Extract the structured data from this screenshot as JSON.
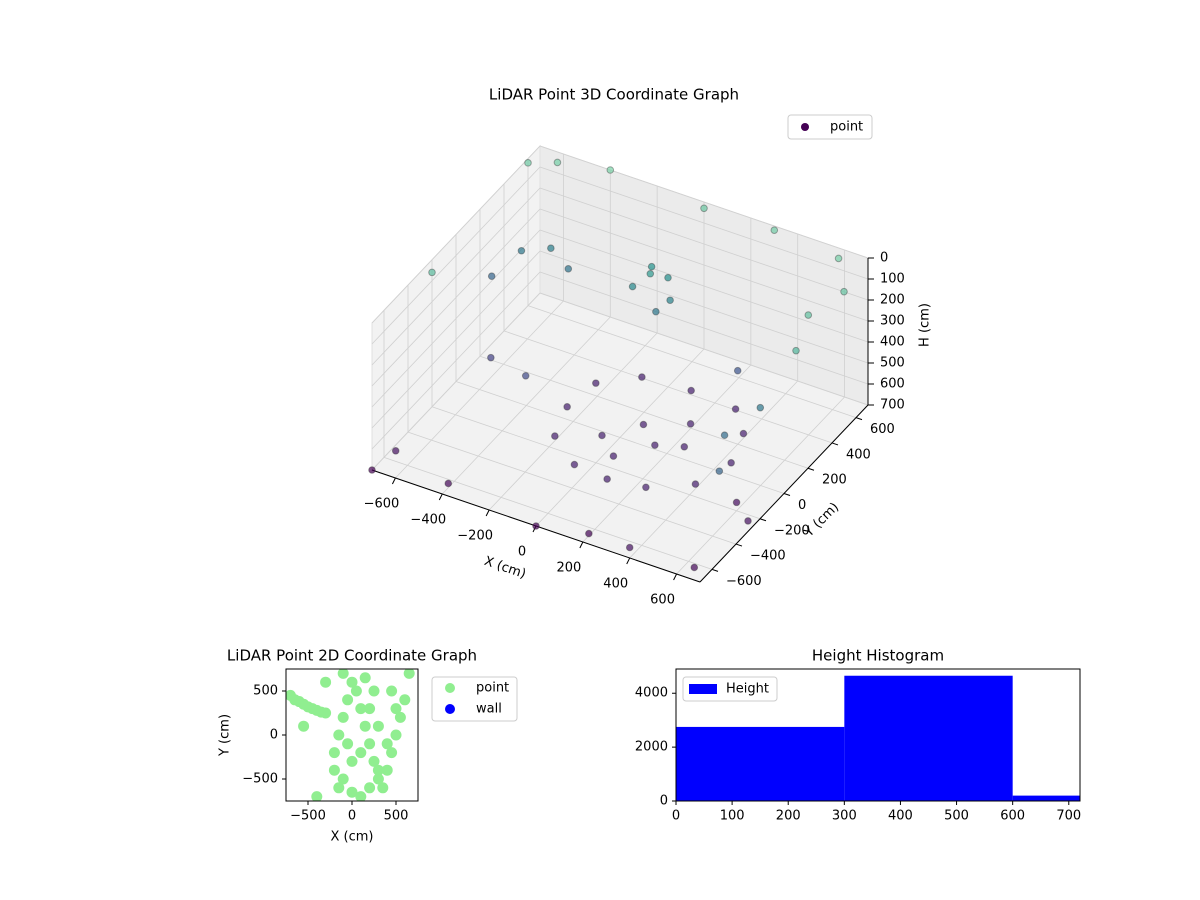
{
  "chart_data": [
    {
      "type": "scatter3d",
      "title": "LiDAR Point 3D Coordinate Graph",
      "xlabel": "X (cm)",
      "ylabel": "Y (cm)",
      "zlabel": "H (cm)",
      "xlim": [
        -700,
        700
      ],
      "ylim": [
        -700,
        700
      ],
      "zlim": [
        0,
        700
      ],
      "z_inverted": true,
      "grid": true,
      "legend": "upper right",
      "xticks": [
        {
          "value": -600,
          "label": "−600"
        },
        {
          "value": -400,
          "label": "−400"
        },
        {
          "value": -200,
          "label": "−200"
        },
        0,
        200,
        400,
        600
      ],
      "yticks": [
        {
          "value": -600,
          "label": "−600"
        },
        {
          "value": -400,
          "label": "−400"
        },
        {
          "value": -200,
          "label": "−200"
        },
        0,
        200,
        400,
        600
      ],
      "zticks": [
        0,
        100,
        200,
        300,
        400,
        500,
        600,
        700
      ],
      "series": [
        {
          "name": "point",
          "color": "#440154",
          "cmap": [
            "#7ad3a8",
            "#21918c",
            "#3b528b",
            "#46327e",
            "#440154"
          ],
          "x": [
            500,
            450,
            350,
            150,
            -50,
            -180,
            -200,
            -150,
            0,
            150,
            300,
            450,
            100,
            200,
            0,
            250,
            100,
            300,
            -50,
            0,
            -100,
            50,
            -80,
            20,
            -600,
            -500,
            -400,
            -650,
            -700,
            -600,
            -400,
            0,
            300,
            600,
            700,
            650,
            -700,
            700,
            650,
            600,
            680,
            -650,
            -400,
            0,
            400,
            650,
            700,
            -700,
            200,
            600,
            -300,
            400,
            -500
          ],
          "y": [
            -50,
            150,
            280,
            300,
            280,
            150,
            -50,
            -250,
            -380,
            -400,
            -370,
            -250,
            0,
            -100,
            -150,
            100,
            -250,
            -50,
            350,
            400,
            300,
            320,
            420,
            260,
            350,
            400,
            350,
            200,
            600,
            650,
            700,
            700,
            700,
            650,
            500,
            300,
            -200,
            100,
            -100,
            -300,
            -500,
            -600,
            -650,
            -700,
            -700,
            -650,
            -300,
            -700,
            -650,
            -200,
            -200,
            200,
            -100
          ],
          "z": [
            600,
            600,
            600,
            600,
            600,
            600,
            600,
            600,
            600,
            600,
            600,
            600,
            600,
            600,
            600,
            600,
            600,
            600,
            150,
            180,
            200,
            220,
            170,
            250,
            250,
            230,
            260,
            300,
            20,
            10,
            0,
            30,
            20,
            10,
            40,
            50,
            60,
            80,
            250,
            280,
            300,
            650,
            680,
            700,
            650,
            680,
            650,
            700,
            690,
            660,
            400,
            350,
            450
          ]
        }
      ]
    },
    {
      "type": "scatter",
      "title": "LiDAR Point 2D Coordinate Graph",
      "xlabel": "X (cm)",
      "ylabel": "Y (cm)",
      "xlim": [
        -750,
        750
      ],
      "ylim": [
        -750,
        750
      ],
      "legend": "outside right",
      "xticks": [
        {
          "value": -500,
          "label": "−500"
        },
        0,
        500
      ],
      "yticks": [
        {
          "value": -500,
          "label": "−500"
        },
        0,
        500
      ],
      "series": [
        {
          "name": "point",
          "color": "#90ee90",
          "x": [
            -700,
            -650,
            -600,
            -550,
            -500,
            -450,
            -400,
            -350,
            -300,
            -550,
            -400,
            -200,
            -200,
            -150,
            -100,
            -50,
            0,
            50,
            100,
            150,
            200,
            250,
            300,
            350,
            400,
            450,
            500,
            550,
            600,
            650,
            -150,
            -100,
            0,
            100,
            200,
            300,
            400,
            500,
            250,
            150,
            -300,
            -100,
            450,
            100,
            0,
            300,
            200,
            -50
          ],
          "y": [
            450,
            400,
            380,
            350,
            320,
            300,
            280,
            260,
            250,
            100,
            -700,
            -400,
            -200,
            0,
            200,
            400,
            600,
            500,
            300,
            100,
            -100,
            -300,
            -500,
            -600,
            -400,
            -200,
            0,
            200,
            400,
            700,
            -600,
            -500,
            -650,
            -700,
            -600,
            -400,
            -100,
            300,
            500,
            650,
            600,
            700,
            500,
            -200,
            -300,
            100,
            300,
            -100
          ]
        },
        {
          "name": "wall",
          "color": "#0000ff",
          "x": [],
          "y": []
        }
      ]
    },
    {
      "type": "histogram",
      "title": "Height Histogram",
      "legend": "upper left",
      "xlim": [
        0,
        720
      ],
      "ylim": [
        0,
        4900
      ],
      "xticks": [
        0,
        100,
        200,
        300,
        400,
        500,
        600,
        700
      ],
      "yticks": [
        0,
        2000,
        4000
      ],
      "bins": [
        0,
        300,
        600,
        900
      ],
      "series": [
        {
          "name": "Height",
          "color": "#0000ff",
          "values": [
            2750,
            4650,
            200
          ]
        }
      ]
    }
  ]
}
